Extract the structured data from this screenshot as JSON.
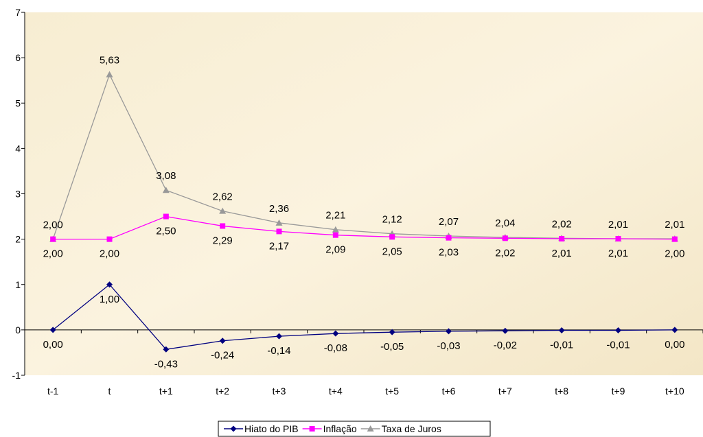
{
  "chart_data": {
    "type": "line",
    "title": "",
    "xlabel": "",
    "ylabel": "",
    "categories": [
      "t-1",
      "t",
      "t+1",
      "t+2",
      "t+3",
      "t+4",
      "t+5",
      "t+6",
      "t+7",
      "t+8",
      "t+9",
      "t+10"
    ],
    "ylim": [
      -1,
      7
    ],
    "yticks": [
      "-1",
      "0",
      "1",
      "2",
      "3",
      "4",
      "5",
      "6",
      "7"
    ],
    "grid": false,
    "legend_position": "bottom",
    "series": [
      {
        "name": "Hiato do PIB",
        "color": "#000080",
        "marker": "diamond",
        "label_position": "below",
        "values": [
          0,
          1,
          -0.43,
          -0.24,
          -0.14,
          -0.08,
          -0.05,
          -0.03,
          -0.02,
          -0.01,
          -0.01,
          0
        ],
        "labels": [
          "0,00",
          "1,00",
          "-0,43",
          "-0,24",
          "-0,14",
          "-0,08",
          "-0,05",
          "-0,03",
          "-0,02",
          "-0,01",
          "-0,01",
          "0,00"
        ]
      },
      {
        "name": "Inflação",
        "color": "#ff00ff",
        "marker": "square",
        "label_position": "below",
        "values": [
          2,
          2,
          2.5,
          2.29,
          2.17,
          2.09,
          2.05,
          2.03,
          2.02,
          2.01,
          2.01,
          2
        ],
        "labels": [
          "2,00",
          "2,00",
          "2,50",
          "2,29",
          "2,17",
          "2,09",
          "2,05",
          "2,03",
          "2,02",
          "2,01",
          "2,01",
          "2,00"
        ]
      },
      {
        "name": "Taxa de Juros",
        "color": "#999999",
        "marker": "triangle",
        "label_position": "above",
        "values": [
          2,
          5.63,
          3.08,
          2.62,
          2.36,
          2.21,
          2.12,
          2.07,
          2.04,
          2.02,
          2.01,
          2.01
        ],
        "labels": [
          "2,00",
          "5,63",
          "3,08",
          "2,62",
          "2,36",
          "2,21",
          "2,12",
          "2,07",
          "2,04",
          "2,02",
          "2,01",
          "2,01"
        ]
      }
    ]
  }
}
